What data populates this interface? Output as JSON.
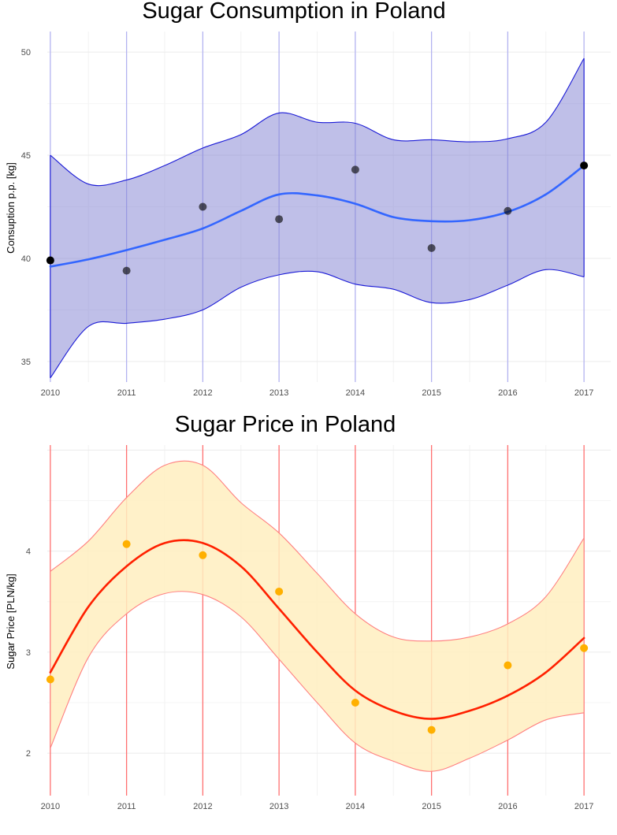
{
  "chart_data": [
    {
      "type": "scatter",
      "title": "Sugar Consumption in Poland",
      "xlabel": "",
      "ylabel": "Consuption p.p. [kg]",
      "x": [
        2010,
        2011,
        2012,
        2013,
        2014,
        2015,
        2016,
        2017
      ],
      "x_ticks": [
        "2010",
        "2011",
        "2012",
        "2013",
        "2014",
        "2015",
        "2016",
        "2017"
      ],
      "y_ticks": [
        "35",
        "40",
        "45",
        "50"
      ],
      "xlim": [
        2009.96,
        2017.35
      ],
      "ylim": [
        34.0,
        51.0
      ],
      "grid": true,
      "legend": "none",
      "colors": {
        "points": "#000000",
        "smooth_line": "#3366ff",
        "band_fill": "#7f7fd1",
        "band_stroke": "#1a1ad6",
        "year_lines": "#b3b3f0"
      },
      "series": [
        {
          "kind": "points",
          "values": [
            39.9,
            39.4,
            42.5,
            41.9,
            44.3,
            40.5,
            42.3,
            44.5
          ]
        },
        {
          "kind": "smooth",
          "x": [
            2010,
            2010.5,
            2011,
            2011.5,
            2012,
            2012.5,
            2013,
            2013.5,
            2014,
            2014.5,
            2015,
            2015.5,
            2016,
            2016.5,
            2017
          ],
          "fit": [
            39.6,
            39.95,
            40.4,
            40.9,
            41.45,
            42.3,
            43.1,
            43.05,
            42.65,
            42.0,
            41.8,
            41.85,
            42.25,
            43.1,
            44.5
          ],
          "lower": [
            34.2,
            36.7,
            36.85,
            37.05,
            37.5,
            38.6,
            39.2,
            39.35,
            38.75,
            38.5,
            37.85,
            38.0,
            38.7,
            39.45,
            39.1
          ],
          "upper": [
            45.0,
            43.6,
            43.8,
            44.5,
            45.35,
            46.0,
            47.05,
            46.6,
            46.55,
            45.75,
            45.75,
            45.65,
            45.8,
            46.6,
            49.7
          ]
        }
      ]
    },
    {
      "type": "scatter",
      "title": "Sugar Price in Poland",
      "xlabel": "",
      "ylabel": "Sugar Price [PLN/kg]",
      "x": [
        2010,
        2011,
        2012,
        2013,
        2014,
        2015,
        2016,
        2017
      ],
      "x_ticks": [
        "2010",
        "2011",
        "2012",
        "2013",
        "2014",
        "2015",
        "2016",
        "2017"
      ],
      "y_ticks": [
        "2",
        "3",
        "4"
      ],
      "xlim": [
        2009.96,
        2017.35
      ],
      "ylim": [
        1.58,
        5.05
      ],
      "grid": true,
      "legend": "none",
      "colors": {
        "points": "#ffb000",
        "smooth_line": "#ff2000",
        "band_fill": "#ffeec0",
        "band_stroke": "#ff8080",
        "year_lines": "#ff7070"
      },
      "series": [
        {
          "kind": "points",
          "values": [
            2.73,
            4.07,
            3.96,
            3.6,
            2.5,
            2.23,
            2.87,
            3.04
          ]
        },
        {
          "kind": "smooth",
          "x": [
            2010,
            2010.5,
            2011,
            2011.5,
            2012,
            2012.5,
            2013,
            2013.5,
            2014,
            2014.5,
            2015,
            2015.5,
            2016,
            2016.5,
            2017
          ],
          "fit": [
            2.8,
            3.45,
            3.85,
            4.08,
            4.08,
            3.85,
            3.43,
            3.0,
            2.62,
            2.42,
            2.34,
            2.42,
            2.57,
            2.8,
            3.14
          ],
          "lower": [
            2.05,
            2.95,
            3.38,
            3.58,
            3.57,
            3.35,
            2.93,
            2.5,
            2.1,
            1.92,
            1.82,
            1.95,
            2.13,
            2.33,
            2.4
          ],
          "upper": [
            3.8,
            4.1,
            4.53,
            4.85,
            4.85,
            4.48,
            4.18,
            3.78,
            3.38,
            3.15,
            3.11,
            3.15,
            3.28,
            3.55,
            4.13
          ]
        }
      ]
    }
  ]
}
